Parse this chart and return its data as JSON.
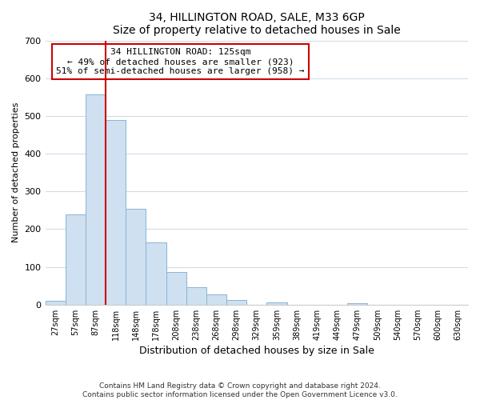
{
  "title": "34, HILLINGTON ROAD, SALE, M33 6GP",
  "subtitle": "Size of property relative to detached houses in Sale",
  "xlabel": "Distribution of detached houses by size in Sale",
  "ylabel": "Number of detached properties",
  "bar_labels": [
    "27sqm",
    "57sqm",
    "87sqm",
    "118sqm",
    "148sqm",
    "178sqm",
    "208sqm",
    "238sqm",
    "268sqm",
    "298sqm",
    "329sqm",
    "359sqm",
    "389sqm",
    "419sqm",
    "449sqm",
    "479sqm",
    "509sqm",
    "540sqm",
    "570sqm",
    "600sqm",
    "630sqm"
  ],
  "bar_values": [
    10,
    240,
    558,
    490,
    255,
    165,
    87,
    46,
    27,
    12,
    0,
    7,
    0,
    0,
    0,
    4,
    0,
    0,
    0,
    0,
    0
  ],
  "bar_color": "#cfe0f0",
  "bar_edge_color": "#8ab4d4",
  "vline_x": 3,
  "vline_color": "#cc0000",
  "ylim": [
    0,
    700
  ],
  "yticks": [
    0,
    100,
    200,
    300,
    400,
    500,
    600,
    700
  ],
  "annotation_title": "34 HILLINGTON ROAD: 125sqm",
  "annotation_line1": "← 49% of detached houses are smaller (923)",
  "annotation_line2": "51% of semi-detached houses are larger (958) →",
  "annotation_box_color": "#ffffff",
  "annotation_box_edge": "#cc0000",
  "footer_line1": "Contains HM Land Registry data © Crown copyright and database right 2024.",
  "footer_line2": "Contains public sector information licensed under the Open Government Licence v3.0.",
  "bg_color": "#ffffff",
  "plot_bg_color": "#ffffff",
  "grid_color": "#d0dce8"
}
